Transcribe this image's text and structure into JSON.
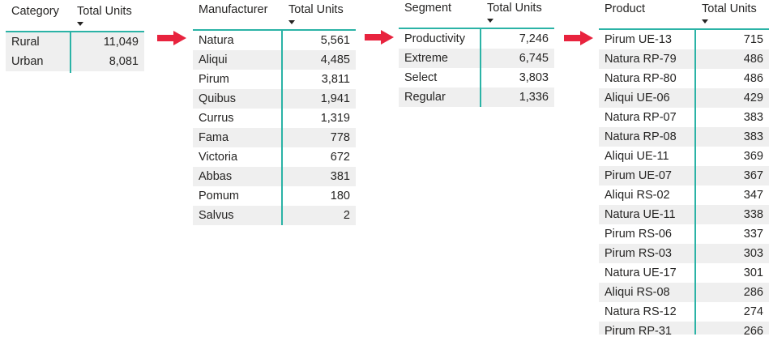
{
  "tables": [
    {
      "id": "category",
      "col1": "Category",
      "col2": "Total Units",
      "rows": [
        {
          "label": "Rural",
          "value": "11,049"
        },
        {
          "label": "Urban",
          "value": "8,081"
        }
      ]
    },
    {
      "id": "manufacturer",
      "col1": "Manufacturer",
      "col2": "Total Units",
      "rows": [
        {
          "label": "Natura",
          "value": "5,561"
        },
        {
          "label": "Aliqui",
          "value": "4,485"
        },
        {
          "label": "Pirum",
          "value": "3,811"
        },
        {
          "label": "Quibus",
          "value": "1,941"
        },
        {
          "label": "Currus",
          "value": "1,319"
        },
        {
          "label": "Fama",
          "value": "778"
        },
        {
          "label": "Victoria",
          "value": "672"
        },
        {
          "label": "Abbas",
          "value": "381"
        },
        {
          "label": "Pomum",
          "value": "180"
        },
        {
          "label": "Salvus",
          "value": "2"
        }
      ]
    },
    {
      "id": "segment",
      "col1": "Segment",
      "col2": "Total Units",
      "rows": [
        {
          "label": "Productivity",
          "value": "7,246"
        },
        {
          "label": "Extreme",
          "value": "6,745"
        },
        {
          "label": "Select",
          "value": "3,803"
        },
        {
          "label": "Regular",
          "value": "1,336"
        }
      ]
    },
    {
      "id": "product",
      "col1": "Product",
      "col2": "Total Units",
      "rows": [
        {
          "label": "Pirum UE-13",
          "value": "715"
        },
        {
          "label": "Natura RP-79",
          "value": "486"
        },
        {
          "label": "Natura RP-80",
          "value": "486"
        },
        {
          "label": "Aliqui UE-06",
          "value": "429"
        },
        {
          "label": "Natura RP-07",
          "value": "383"
        },
        {
          "label": "Natura RP-08",
          "value": "383"
        },
        {
          "label": "Aliqui UE-11",
          "value": "369"
        },
        {
          "label": "Pirum UE-07",
          "value": "367"
        },
        {
          "label": "Aliqui RS-02",
          "value": "347"
        },
        {
          "label": "Natura UE-11",
          "value": "338"
        },
        {
          "label": "Pirum RS-06",
          "value": "337"
        },
        {
          "label": "Pirum RS-03",
          "value": "303"
        },
        {
          "label": "Natura UE-17",
          "value": "301"
        },
        {
          "label": "Aliqui RS-08",
          "value": "286"
        },
        {
          "label": "Natura RS-12",
          "value": "274"
        },
        {
          "label": "Pirum RP-31",
          "value": "266"
        }
      ]
    }
  ],
  "colors": {
    "accent_teal": "#2bb3a6",
    "arrow_red": "#e8233e",
    "row_alt": "#efefef"
  },
  "icons": {
    "sort": "sort-descending-icon",
    "flow": "right-arrow-icon"
  }
}
